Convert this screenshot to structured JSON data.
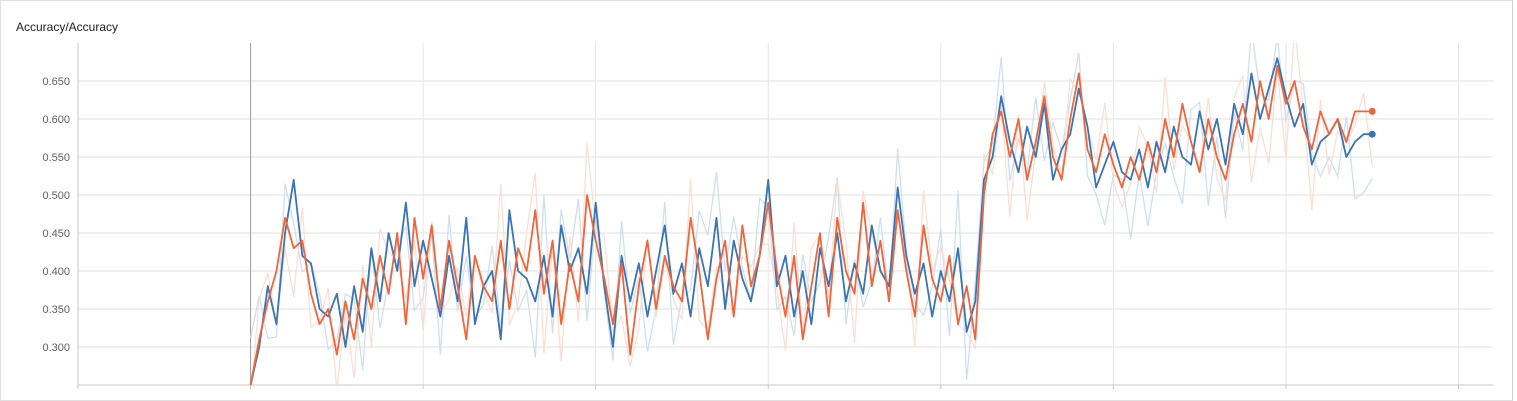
{
  "card": {
    "title": "Accuracy/Accuracy"
  },
  "chart_data": {
    "type": "line",
    "title": "Accuracy/Accuracy",
    "xlabel": "",
    "ylabel": "",
    "ylim": [
      0.25,
      0.7
    ],
    "xlim": [
      0,
      16.4
    ],
    "yticks": [
      0.3,
      0.35,
      0.4,
      0.45,
      0.5,
      0.55,
      0.6,
      0.65
    ],
    "ytick_labels": [
      "0.300",
      "0.350",
      "0.400",
      "0.450",
      "0.500",
      "0.550",
      "0.600",
      "0.650"
    ],
    "xticks": [
      0,
      2,
      4,
      6,
      8,
      10,
      12,
      14,
      16
    ],
    "xtick_labels": [],
    "grid": true,
    "series": [
      {
        "color": "#3a74b4",
        "raw_color": "#c6dbef",
        "x": [
          2.0,
          2.1,
          2.2,
          2.3,
          2.4,
          2.5,
          2.6,
          2.7,
          2.8,
          2.9,
          3.0,
          3.1,
          3.2,
          3.3,
          3.4,
          3.5,
          3.6,
          3.7,
          3.8,
          3.9,
          4.0,
          4.1,
          4.2,
          4.3,
          4.4,
          4.5,
          4.6,
          4.7,
          4.8,
          4.9,
          5.0,
          5.1,
          5.2,
          5.3,
          5.4,
          5.5,
          5.6,
          5.7,
          5.8,
          5.9,
          6.0,
          6.1,
          6.2,
          6.3,
          6.4,
          6.5,
          6.6,
          6.7,
          6.8,
          6.9,
          7.0,
          7.1,
          7.2,
          7.3,
          7.4,
          7.5,
          7.6,
          7.7,
          7.8,
          7.9,
          8.0,
          8.1,
          8.2,
          8.3,
          8.4,
          8.5,
          8.6,
          8.7,
          8.8,
          8.9,
          9.0,
          9.1,
          9.2,
          9.3,
          9.4,
          9.5,
          9.6,
          9.7,
          9.8,
          9.9,
          10.0,
          10.1,
          10.2,
          10.3,
          10.4,
          10.5,
          10.6,
          10.7,
          10.8,
          10.9,
          11.0,
          11.1,
          11.2,
          11.3,
          11.4,
          11.5,
          11.6,
          11.7,
          11.8,
          11.9,
          12.0,
          12.1,
          12.2,
          12.3,
          12.4,
          12.5,
          12.6,
          12.7,
          12.8,
          12.9,
          13.0,
          13.1,
          13.2,
          13.3,
          13.4,
          13.5,
          13.6,
          13.7,
          13.8,
          13.9,
          14.0,
          14.1,
          14.2,
          14.3,
          14.4,
          14.5,
          14.6,
          14.7,
          14.8,
          14.9,
          15.0
        ],
        "values": [
          0.25,
          0.3,
          0.38,
          0.33,
          0.45,
          0.52,
          0.42,
          0.41,
          0.35,
          0.34,
          0.37,
          0.3,
          0.38,
          0.32,
          0.43,
          0.36,
          0.45,
          0.4,
          0.49,
          0.38,
          0.44,
          0.39,
          0.34,
          0.42,
          0.36,
          0.47,
          0.33,
          0.38,
          0.4,
          0.31,
          0.48,
          0.4,
          0.39,
          0.36,
          0.42,
          0.34,
          0.46,
          0.4,
          0.43,
          0.37,
          0.49,
          0.38,
          0.3,
          0.42,
          0.36,
          0.41,
          0.34,
          0.4,
          0.46,
          0.37,
          0.41,
          0.34,
          0.43,
          0.38,
          0.47,
          0.35,
          0.44,
          0.39,
          0.36,
          0.42,
          0.52,
          0.38,
          0.42,
          0.34,
          0.4,
          0.33,
          0.43,
          0.38,
          0.45,
          0.36,
          0.41,
          0.37,
          0.46,
          0.4,
          0.38,
          0.51,
          0.42,
          0.37,
          0.41,
          0.34,
          0.4,
          0.36,
          0.43,
          0.32,
          0.36,
          0.52,
          0.55,
          0.63,
          0.57,
          0.53,
          0.59,
          0.55,
          0.62,
          0.52,
          0.56,
          0.58,
          0.64,
          0.59,
          0.51,
          0.54,
          0.57,
          0.53,
          0.52,
          0.56,
          0.51,
          0.57,
          0.53,
          0.59,
          0.55,
          0.54,
          0.61,
          0.56,
          0.6,
          0.54,
          0.62,
          0.58,
          0.66,
          0.6,
          0.64,
          0.68,
          0.63,
          0.59,
          0.62,
          0.54,
          0.57,
          0.58,
          0.6,
          0.55,
          0.57,
          0.58,
          0.58
        ]
      },
      {
        "color": "#f0653b",
        "raw_color": "#fcd9cc",
        "x": [
          2.0,
          2.1,
          2.2,
          2.3,
          2.4,
          2.5,
          2.6,
          2.7,
          2.8,
          2.9,
          3.0,
          3.1,
          3.2,
          3.3,
          3.4,
          3.5,
          3.6,
          3.7,
          3.8,
          3.9,
          4.0,
          4.1,
          4.2,
          4.3,
          4.4,
          4.5,
          4.6,
          4.7,
          4.8,
          4.9,
          5.0,
          5.1,
          5.2,
          5.3,
          5.4,
          5.5,
          5.6,
          5.7,
          5.8,
          5.9,
          6.0,
          6.1,
          6.2,
          6.3,
          6.4,
          6.5,
          6.6,
          6.7,
          6.8,
          6.9,
          7.0,
          7.1,
          7.2,
          7.3,
          7.4,
          7.5,
          7.6,
          7.7,
          7.8,
          7.9,
          8.0,
          8.1,
          8.2,
          8.3,
          8.4,
          8.5,
          8.6,
          8.7,
          8.8,
          8.9,
          9.0,
          9.1,
          9.2,
          9.3,
          9.4,
          9.5,
          9.6,
          9.7,
          9.8,
          9.9,
          10.0,
          10.1,
          10.2,
          10.3,
          10.4,
          10.5,
          10.6,
          10.7,
          10.8,
          10.9,
          11.0,
          11.1,
          11.2,
          11.3,
          11.4,
          11.5,
          11.6,
          11.7,
          11.8,
          11.9,
          12.0,
          12.1,
          12.2,
          12.3,
          12.4,
          12.5,
          12.6,
          12.7,
          12.8,
          12.9,
          13.0,
          13.1,
          13.2,
          13.3,
          13.4,
          13.5,
          13.6,
          13.7,
          13.8,
          13.9,
          14.0,
          14.1,
          14.2,
          14.3,
          14.4,
          14.5,
          14.6,
          14.7,
          14.8,
          14.9,
          15.0
        ],
        "values": [
          0.25,
          0.31,
          0.36,
          0.4,
          0.47,
          0.43,
          0.44,
          0.37,
          0.33,
          0.35,
          0.29,
          0.36,
          0.31,
          0.39,
          0.35,
          0.42,
          0.37,
          0.45,
          0.33,
          0.47,
          0.39,
          0.46,
          0.35,
          0.44,
          0.38,
          0.31,
          0.42,
          0.38,
          0.36,
          0.44,
          0.35,
          0.43,
          0.4,
          0.48,
          0.37,
          0.44,
          0.33,
          0.41,
          0.36,
          0.5,
          0.44,
          0.39,
          0.33,
          0.41,
          0.29,
          0.38,
          0.44,
          0.35,
          0.42,
          0.38,
          0.36,
          0.47,
          0.4,
          0.31,
          0.39,
          0.44,
          0.34,
          0.46,
          0.38,
          0.42,
          0.49,
          0.4,
          0.34,
          0.42,
          0.31,
          0.38,
          0.45,
          0.34,
          0.47,
          0.4,
          0.37,
          0.49,
          0.38,
          0.44,
          0.36,
          0.48,
          0.4,
          0.34,
          0.46,
          0.39,
          0.36,
          0.42,
          0.33,
          0.38,
          0.31,
          0.5,
          0.58,
          0.61,
          0.55,
          0.6,
          0.52,
          0.57,
          0.63,
          0.55,
          0.52,
          0.6,
          0.66,
          0.56,
          0.53,
          0.58,
          0.54,
          0.51,
          0.55,
          0.52,
          0.57,
          0.53,
          0.6,
          0.55,
          0.62,
          0.57,
          0.53,
          0.6,
          0.55,
          0.52,
          0.58,
          0.62,
          0.57,
          0.65,
          0.6,
          0.67,
          0.62,
          0.65,
          0.59,
          0.56,
          0.61,
          0.58,
          0.6,
          0.57,
          0.61,
          0.61,
          0.61
        ]
      }
    ]
  }
}
